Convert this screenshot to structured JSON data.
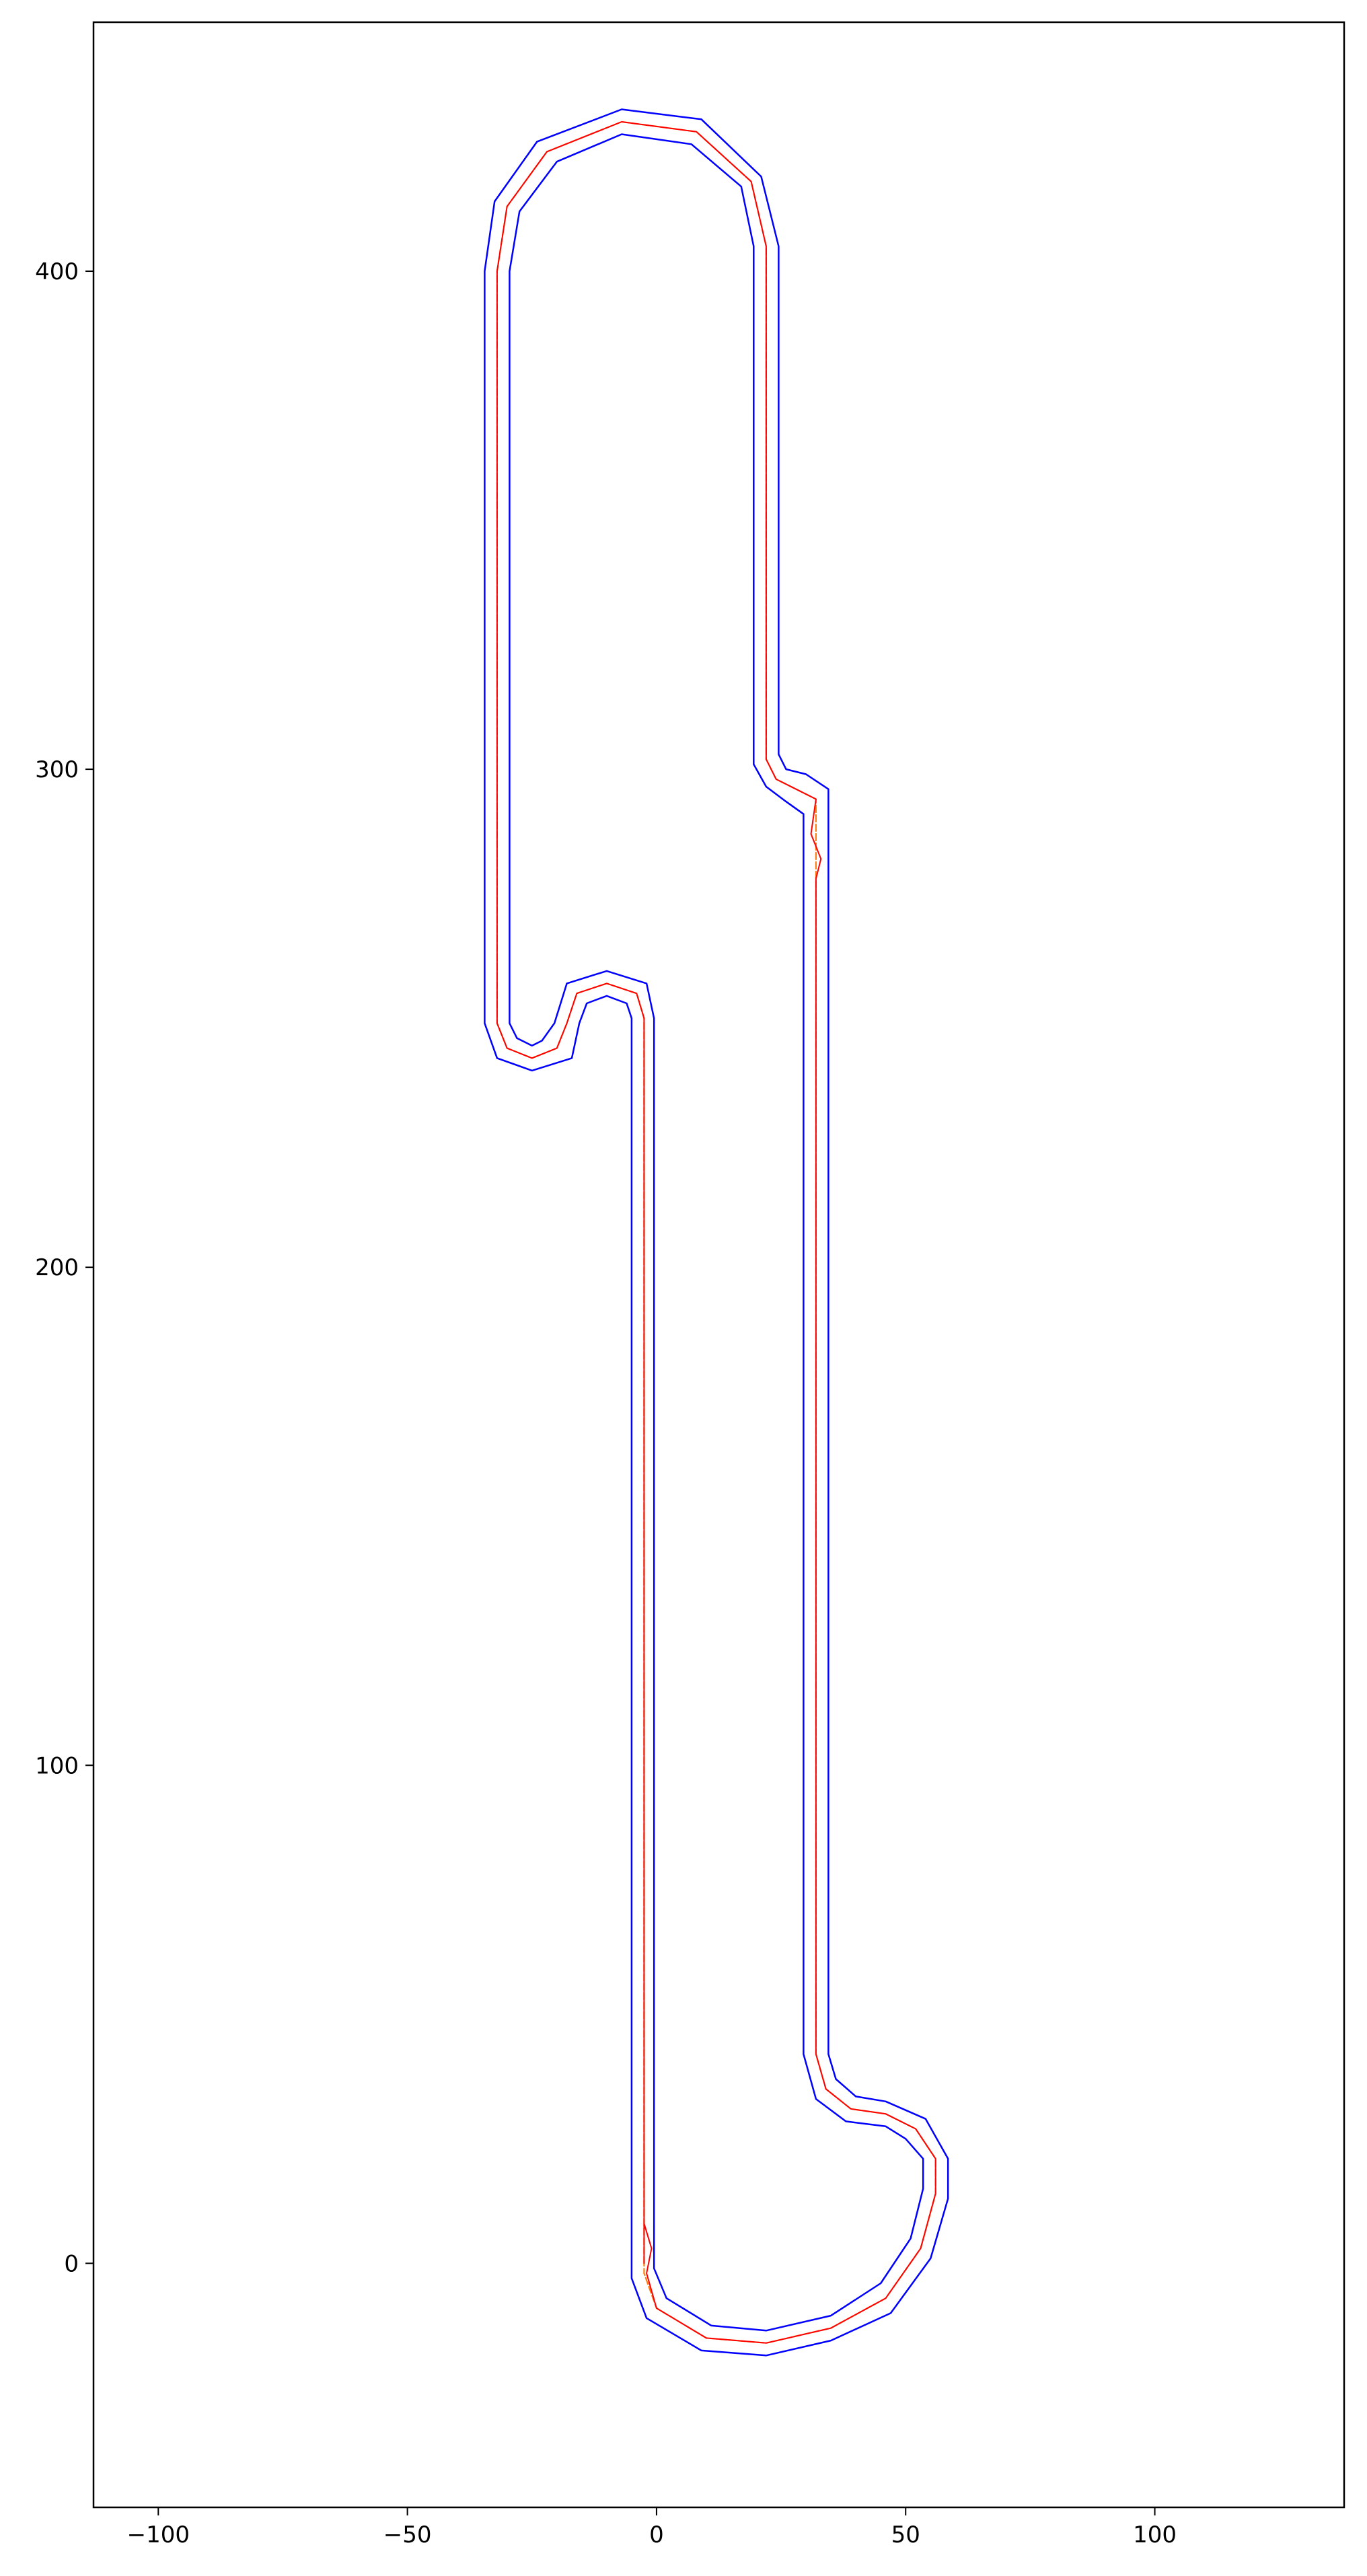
{
  "chart_data": {
    "type": "line",
    "title": "",
    "xlabel": "",
    "ylabel": "",
    "xlim": [
      -113,
      138
    ],
    "ylim": [
      -49,
      450
    ],
    "equal_aspect": true,
    "grid": false,
    "legend": "none",
    "xticks": [
      -100,
      -50,
      0,
      50,
      100
    ],
    "yticks": [
      0,
      100,
      200,
      300,
      400
    ],
    "x_tick_labels": [
      "−100",
      "−50",
      "0",
      "50",
      "100"
    ],
    "y_tick_labels": [
      "0",
      "100",
      "200",
      "300",
      "400"
    ],
    "colors": {
      "track_edges": "#0000ff",
      "centerline": "#ff7f0e",
      "path": "#ff0000",
      "axes": "#000000"
    },
    "centerline": [
      [
        -2.5,
        0
      ],
      [
        -2.5,
        250
      ],
      [
        -4,
        255
      ],
      [
        -10,
        257
      ],
      [
        -16,
        255
      ],
      [
        -18,
        249
      ],
      [
        -20,
        244
      ],
      [
        -25,
        242
      ],
      [
        -30,
        244
      ],
      [
        -32,
        249
      ],
      [
        -32,
        400
      ],
      [
        -30,
        413
      ],
      [
        -22,
        424
      ],
      [
        -7,
        430
      ],
      [
        8,
        428
      ],
      [
        19,
        418
      ],
      [
        22,
        405
      ],
      [
        22,
        302
      ],
      [
        24,
        298
      ],
      [
        28,
        296
      ],
      [
        32,
        294
      ],
      [
        32,
        42
      ],
      [
        34,
        35
      ],
      [
        39,
        31
      ],
      [
        46,
        30
      ],
      [
        52,
        27
      ],
      [
        56,
        21
      ],
      [
        56,
        14
      ],
      [
        53,
        3
      ],
      [
        46,
        -7
      ],
      [
        35,
        -13
      ],
      [
        22,
        -16
      ],
      [
        10,
        -15
      ],
      [
        0,
        -9
      ],
      [
        -2.5,
        -2
      ],
      [
        -2.5,
        0
      ]
    ],
    "path": [
      [
        -2.5,
        0
      ],
      [
        -2.5,
        250
      ],
      [
        -4,
        255
      ],
      [
        -10,
        257
      ],
      [
        -16,
        255
      ],
      [
        -18,
        249
      ],
      [
        -20,
        244
      ],
      [
        -25,
        242
      ],
      [
        -30,
        244
      ],
      [
        -32,
        249
      ],
      [
        -32,
        400
      ],
      [
        -30,
        413
      ],
      [
        -22,
        424
      ],
      [
        -7,
        430
      ],
      [
        8,
        428
      ],
      [
        19,
        418
      ],
      [
        22,
        405
      ],
      [
        22,
        302
      ],
      [
        24,
        298
      ],
      [
        28,
        296
      ],
      [
        32,
        294
      ],
      [
        31,
        287
      ],
      [
        33,
        282
      ],
      [
        32,
        278
      ],
      [
        32,
        42
      ],
      [
        34,
        35
      ],
      [
        39,
        31
      ],
      [
        46,
        30
      ],
      [
        52,
        27
      ],
      [
        56,
        21
      ],
      [
        56,
        14
      ],
      [
        53,
        3
      ],
      [
        46,
        -7
      ],
      [
        35,
        -13
      ],
      [
        22,
        -16
      ],
      [
        10,
        -15
      ],
      [
        0,
        -9
      ],
      [
        -2,
        -2
      ],
      [
        -1,
        3
      ],
      [
        -2.5,
        8
      ]
    ],
    "track_half_width": 2.5,
    "inner_edge": [
      [
        -5,
        0
      ],
      [
        -5,
        250
      ],
      [
        -6,
        253
      ],
      [
        -10,
        254.5
      ],
      [
        -14,
        253
      ],
      [
        -15.5,
        249
      ],
      [
        -17,
        242
      ],
      [
        -25,
        239.5
      ],
      [
        -32,
        242
      ],
      [
        -34.5,
        249
      ],
      [
        -34.5,
        400
      ],
      [
        -32.5,
        414
      ],
      [
        -24,
        426
      ],
      [
        -7,
        432.5
      ],
      [
        9,
        430.5
      ],
      [
        21,
        419
      ],
      [
        24.5,
        405
      ],
      [
        24.5,
        303
      ],
      [
        26,
        300
      ],
      [
        30,
        299
      ],
      [
        34.5,
        296
      ],
      [
        34.5,
        42
      ],
      [
        36,
        37
      ],
      [
        40,
        33.5
      ],
      [
        46,
        32.5
      ],
      [
        54,
        29
      ],
      [
        58.5,
        21
      ],
      [
        58.5,
        13
      ],
      [
        55,
        1
      ],
      [
        47,
        -10
      ],
      [
        35,
        -15.5
      ],
      [
        22,
        -18.5
      ],
      [
        9,
        -17.5
      ],
      [
        -2,
        -11
      ],
      [
        -5,
        -3
      ],
      [
        -5,
        0
      ]
    ],
    "outer_edge": [
      [
        -0.5,
        0
      ],
      [
        -0.5,
        250
      ],
      [
        -2,
        257
      ],
      [
        -10,
        259.5
      ],
      [
        -18,
        257
      ],
      [
        -20.5,
        249
      ],
      [
        -23,
        245.5
      ],
      [
        -25,
        244.5
      ],
      [
        -28,
        246
      ],
      [
        -29.5,
        249
      ],
      [
        -29.5,
        400
      ],
      [
        -27.5,
        412
      ],
      [
        -20,
        422
      ],
      [
        -7,
        427.5
      ],
      [
        7,
        425.5
      ],
      [
        17,
        417
      ],
      [
        19.5,
        405
      ],
      [
        19.5,
        301
      ],
      [
        22,
        296.5
      ],
      [
        26,
        293.5
      ],
      [
        29.5,
        291
      ],
      [
        29.5,
        42
      ],
      [
        32,
        33
      ],
      [
        38,
        28.5
      ],
      [
        46,
        27.5
      ],
      [
        50,
        25
      ],
      [
        53.5,
        21
      ],
      [
        53.5,
        15
      ],
      [
        51,
        5
      ],
      [
        45,
        -4
      ],
      [
        35,
        -10.5
      ],
      [
        22,
        -13.5
      ],
      [
        11,
        -12.5
      ],
      [
        2,
        -7
      ],
      [
        -0.5,
        -1
      ],
      [
        -0.5,
        0
      ]
    ]
  }
}
